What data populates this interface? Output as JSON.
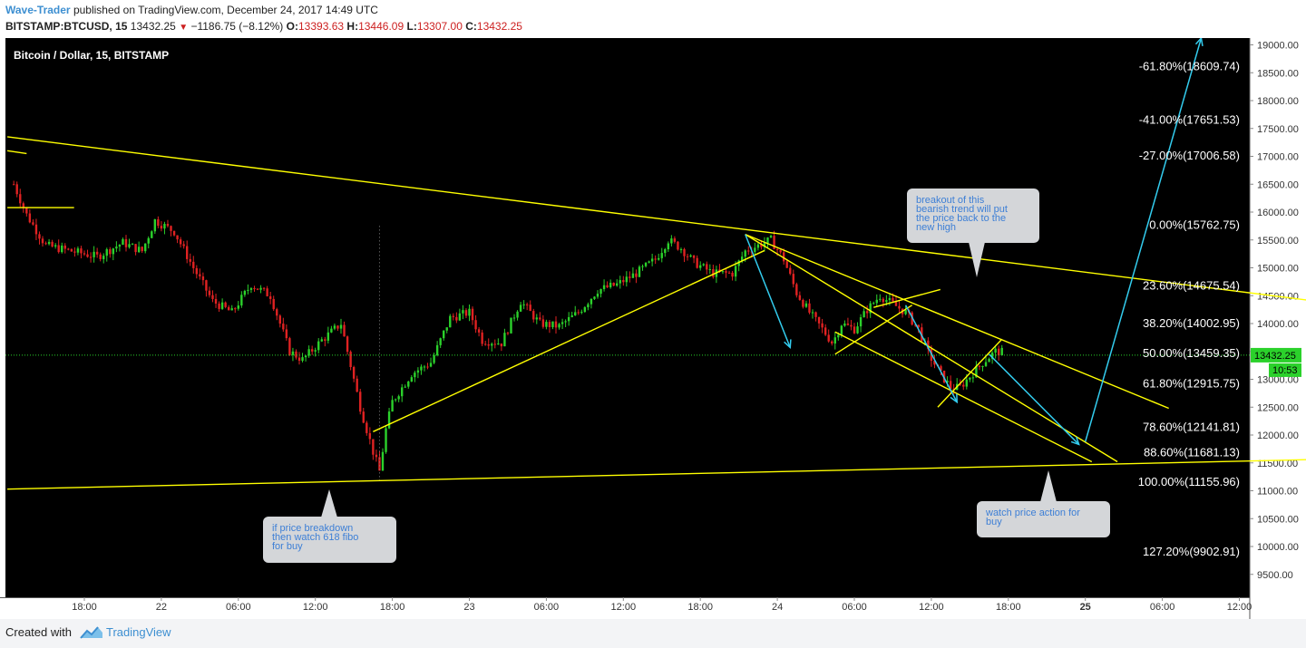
{
  "header": {
    "author": "Wave-Trader",
    "published": "published on TradingView.com, December 24, 2017 14:49 UTC",
    "symbol": "BITSTAMP:BTCUSD, 15",
    "last": "13432.25",
    "change": "−1186.75 (−8.12%)",
    "o_label": "O:",
    "o_value": "13393.63",
    "h_label": "H:",
    "h_value": "13446.09",
    "l_label": "L:",
    "l_value": "13307.00",
    "c_label": "C:",
    "c_value": "13432.25"
  },
  "footer": {
    "created": "Created with",
    "brand": "TradingView"
  },
  "chart_data": {
    "type": "candlestick",
    "title": "Bitcoin / Dollar, 15, BITSTAMP",
    "ylim": [
      9250,
      19500
    ],
    "y_ticks": [
      9500,
      10000,
      10500,
      11000,
      11500,
      12000,
      12500,
      13000,
      13500,
      14000,
      14500,
      15000,
      15500,
      16000,
      16500,
      17000,
      17500,
      18000,
      18500,
      19000
    ],
    "x_ticks": [
      {
        "label": "18:00",
        "t": 18
      },
      {
        "label": "22",
        "t": 24
      },
      {
        "label": "06:00",
        "t": 30
      },
      {
        "label": "12:00",
        "t": 36
      },
      {
        "label": "18:00",
        "t": 42
      },
      {
        "label": "23",
        "t": 48
      },
      {
        "label": "06:00",
        "t": 54
      },
      {
        "label": "12:00",
        "t": 60
      },
      {
        "label": "18:00",
        "t": 66
      },
      {
        "label": "24",
        "t": 72
      },
      {
        "label": "06:00",
        "t": 78
      },
      {
        "label": "12:00",
        "t": 84
      },
      {
        "label": "18:00",
        "t": 90
      },
      {
        "label": "25",
        "t": 96
      },
      {
        "label": "06:00",
        "t": 102
      },
      {
        "label": "12:00",
        "t": 108
      }
    ],
    "last_price": "13432.25",
    "countdown": "10:53",
    "colors": {
      "up": "#2bd12b",
      "down": "#e02222",
      "trend": "#ffff00",
      "arrow": "#33ccee",
      "background": "#000000"
    },
    "price_path": [
      [
        12.5,
        16500
      ],
      [
        13.5,
        15950
      ],
      [
        15,
        15400
      ],
      [
        17,
        15300
      ],
      [
        19,
        15200
      ],
      [
        21,
        15450
      ],
      [
        22.5,
        15300
      ],
      [
        23.5,
        15850
      ],
      [
        25,
        15650
      ],
      [
        26.5,
        15000
      ],
      [
        28,
        14400
      ],
      [
        29.5,
        14200
      ],
      [
        31,
        14700
      ],
      [
        32.5,
        14500
      ],
      [
        34,
        13500
      ],
      [
        35,
        13350
      ],
      [
        36.5,
        13700
      ],
      [
        38,
        14000
      ],
      [
        39.5,
        12500
      ],
      [
        40.5,
        11700
      ],
      [
        41,
        11350
      ],
      [
        41.5,
        12100
      ],
      [
        42,
        12600
      ],
      [
        43.5,
        13100
      ],
      [
        45,
        13300
      ],
      [
        46.5,
        14100
      ],
      [
        48,
        14200
      ],
      [
        49,
        13700
      ],
      [
        50.5,
        13650
      ],
      [
        52,
        14400
      ],
      [
        53.5,
        14000
      ],
      [
        55,
        13950
      ],
      [
        56.5,
        14200
      ],
      [
        58,
        14600
      ],
      [
        59.5,
        14700
      ],
      [
        61,
        14900
      ],
      [
        62.5,
        15150
      ],
      [
        63.5,
        15500
      ],
      [
        64.5,
        15350
      ],
      [
        65.5,
        15100
      ],
      [
        67,
        14900
      ],
      [
        68.5,
        14900
      ],
      [
        69.5,
        15300
      ],
      [
        70.5,
        15400
      ],
      [
        71.5,
        15500
      ],
      [
        72.5,
        15150
      ],
      [
        73.5,
        14550
      ],
      [
        74.5,
        14200
      ],
      [
        75.5,
        13900
      ],
      [
        76.3,
        13650
      ],
      [
        77,
        14000
      ],
      [
        78,
        13900
      ],
      [
        79,
        14250
      ],
      [
        80,
        14500
      ],
      [
        81,
        14350
      ],
      [
        82,
        14200
      ],
      [
        83,
        13900
      ],
      [
        83.8,
        13450
      ],
      [
        84.7,
        13100
      ],
      [
        85.5,
        12850
      ],
      [
        86.2,
        12850
      ],
      [
        87,
        13050
      ],
      [
        88,
        13300
      ],
      [
        89,
        13500
      ],
      [
        89.7,
        13480
      ]
    ],
    "price_path_note": "",
    "fib_levels": [
      {
        "label": "-61.80%(18609.74)",
        "price": 18609.74
      },
      {
        "label": "-41.00%(17651.53)",
        "price": 17651.53
      },
      {
        "label": "-27.00%(17006.58)",
        "price": 17006.58
      },
      {
        "label": "0.00%(15762.75)",
        "price": 15762.75
      },
      {
        "label": "23.60%(14675.54)",
        "price": 14675.54
      },
      {
        "label": "38.20%(14002.95)",
        "price": 14002.95
      },
      {
        "label": "50.00%(13459.35)",
        "price": 13459.35
      },
      {
        "label": "61.80%(12915.75)",
        "price": 12915.75
      },
      {
        "label": "78.60%(12141.81)",
        "price": 12141.81
      },
      {
        "label": "88.60%(11681.13)",
        "price": 11681.13
      },
      {
        "label": "100.00%(11155.96)",
        "price": 11155.96
      },
      {
        "label": "127.20%(9902.91)",
        "price": 9902.91
      }
    ],
    "annotations": [
      {
        "text": "breakout of this bearish trend will put the price back to the new high"
      },
      {
        "text": "if price breakdown then watch 618 fibo for buy"
      },
      {
        "text": "watch price action for buy"
      }
    ],
    "trend_lines": [
      {
        "from": [
          12,
          17350
        ],
        "to": [
          117.5,
          14300
        ]
      },
      {
        "from": [
          12,
          11030
        ],
        "to": [
          117.5,
          11580
        ]
      },
      {
        "from": [
          12,
          17100
        ],
        "to": [
          13.5,
          17050
        ]
      },
      {
        "from": [
          12,
          16080
        ],
        "to": [
          17.2,
          16080
        ]
      },
      {
        "from": [
          40.5,
          12060
        ],
        "to": [
          71,
          15310
        ]
      },
      {
        "from": [
          69.5,
          15600
        ],
        "to": [
          98.5,
          11520
        ]
      },
      {
        "from": [
          69.5,
          15600
        ],
        "to": [
          102.5,
          12480
        ]
      },
      {
        "from": [
          76.5,
          13850
        ],
        "to": [
          96.5,
          11520
        ]
      },
      {
        "from": [
          76.5,
          13450
        ],
        "to": [
          82.5,
          14330
        ]
      },
      {
        "from": [
          79.5,
          14290
        ],
        "to": [
          84.7,
          14610
        ]
      },
      {
        "from": [
          84.5,
          12500
        ],
        "to": [
          89.5,
          13720
        ]
      }
    ],
    "arrows": [
      {
        "from": [
          69.5,
          15600
        ],
        "to": [
          73,
          13570
        ]
      },
      {
        "from": [
          82,
          14330
        ],
        "to": [
          86,
          12590
        ]
      },
      {
        "from": [
          88.5,
          13450
        ],
        "to": [
          95.5,
          11830
        ]
      },
      {
        "from": [
          96,
          11880
        ],
        "to": [
          105.5,
          19500
        ]
      }
    ]
  }
}
